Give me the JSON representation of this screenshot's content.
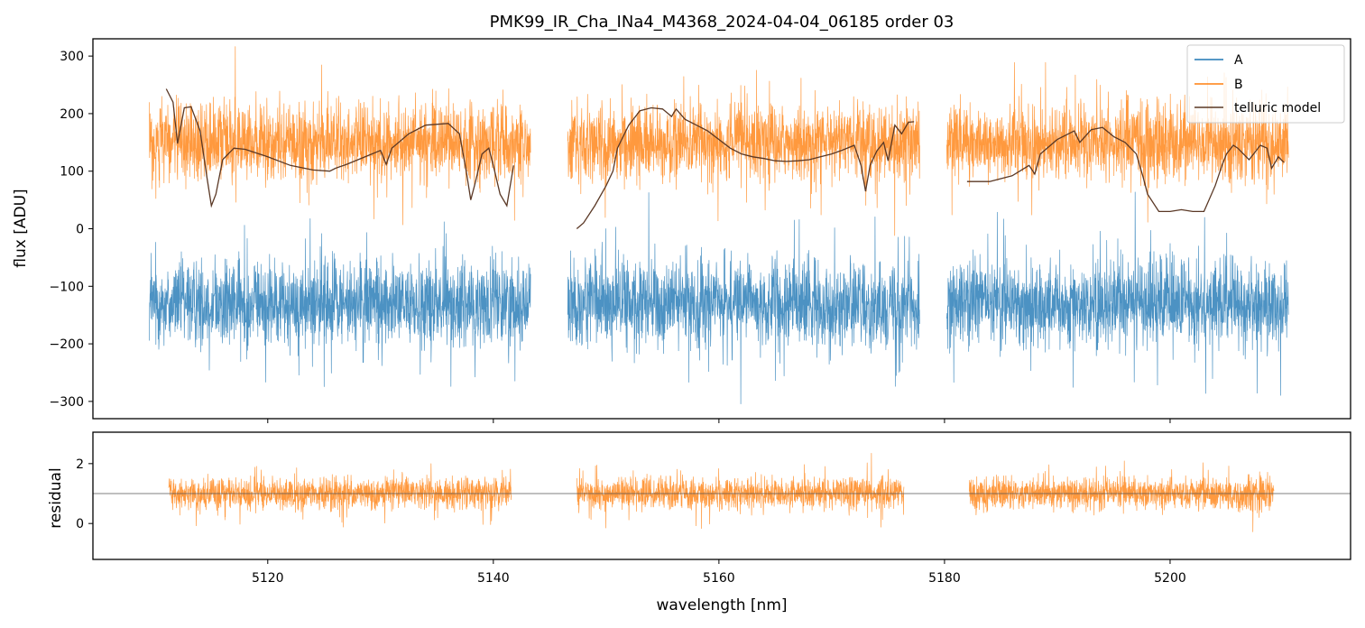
{
  "chart_data": [
    {
      "panel": "top",
      "type": "line",
      "title": "PMK99_IR_Cha_INa4_M4368_2024-04-04_06185  order 03",
      "xlabel": "",
      "ylabel": "flux [ADU]",
      "xlim": [
        5104.5,
        5216.0
      ],
      "ylim": [
        -330,
        330
      ],
      "yticks": [
        300,
        200,
        100,
        0,
        -100,
        -200,
        -300
      ],
      "ytick_labels": [
        "300",
        "200",
        "100",
        "0",
        "−100",
        "−200",
        "−300"
      ],
      "xticks": [
        5120,
        5140,
        5160,
        5180,
        5200
      ],
      "legend": {
        "position": "top-right",
        "entries": [
          "A",
          "B",
          "telluric model"
        ]
      },
      "segments": [
        {
          "x": [
            5109.5,
            5143.3
          ]
        },
        {
          "x": [
            5146.6,
            5177.8
          ]
        },
        {
          "x": [
            5180.2,
            5210.5
          ]
        }
      ],
      "series": [
        {
          "name": "A",
          "color": "#1f77b4",
          "band_center": -130,
          "band_halfwidth": 105
        },
        {
          "name": "B",
          "color": "#ff7f0e",
          "band_center": 150,
          "band_halfwidth": 95
        },
        {
          "name": "telluric model",
          "color": "#5a3825",
          "segments": [
            {
              "x": [
                5111.0,
                5111.6,
                5112.0,
                5112.6,
                5113.2,
                5114.0,
                5114.6,
                5115.0,
                5115.4,
                5116.0,
                5117.0,
                5118.0,
                5120.0,
                5122.0,
                5124.0,
                5125.5,
                5126.0,
                5127.0,
                5129.0,
                5130.0,
                5130.5,
                5131.0,
                5132.5,
                5134.0,
                5136.0,
                5137.0,
                5137.6,
                5138.0,
                5138.4,
                5139.0,
                5139.6,
                5140.0,
                5140.6,
                5141.2,
                5141.8
              ],
              "y": [
                243,
                220,
                148,
                210,
                212,
                170,
                90,
                40,
                60,
                120,
                140,
                138,
                125,
                110,
                102,
                100,
                105,
                112,
                128,
                136,
                112,
                140,
                165,
                180,
                183,
                165,
                100,
                50,
                80,
                130,
                140,
                110,
                60,
                40,
                110
              ]
            },
            {
              "x": [
                5147.4,
                5148.0,
                5149.0,
                5150.0,
                5150.6,
                5151.0,
                5152.0,
                5153.0,
                5154.0,
                5155.0,
                5155.8,
                5156.2,
                5157.0,
                5158.0,
                5159.0,
                5160.0,
                5161.0,
                5162.0,
                5163.0,
                5164.0,
                5165.0,
                5166.0,
                5167.0,
                5168.0,
                5169.0,
                5170.0,
                5171.0,
                5172.0,
                5172.6,
                5173.0,
                5173.4,
                5174.0,
                5174.6,
                5175.0,
                5175.6,
                5176.2,
                5176.8,
                5177.3
              ],
              "y": [
                0,
                10,
                40,
                75,
                100,
                140,
                180,
                205,
                210,
                208,
                195,
                208,
                190,
                180,
                170,
                155,
                140,
                130,
                125,
                122,
                118,
                117,
                118,
                120,
                125,
                130,
                137,
                145,
                110,
                65,
                110,
                135,
                150,
                118,
                180,
                165,
                185,
                186
              ]
            },
            {
              "x": [
                5182.0,
                5184.0,
                5186.0,
                5187.5,
                5188.0,
                5188.5,
                5190.0,
                5191.5,
                5192.0,
                5193.0,
                5194.0,
                5195.0,
                5196.0,
                5197.0,
                5197.6,
                5198.0,
                5199.0,
                5200.0,
                5201.0,
                5202.0,
                5203.0,
                5204.0,
                5204.6,
                5205.0,
                5205.6,
                5206.0,
                5207.0,
                5208.0,
                5208.6,
                5209.0,
                5209.6,
                5210.1
              ],
              "y": [
                82,
                82,
                92,
                110,
                95,
                130,
                155,
                170,
                150,
                172,
                176,
                160,
                150,
                130,
                90,
                60,
                30,
                30,
                33,
                30,
                30,
                75,
                110,
                130,
                145,
                140,
                120,
                145,
                140,
                105,
                125,
                115
              ]
            }
          ]
        }
      ]
    },
    {
      "panel": "bottom",
      "type": "line",
      "title": "",
      "xlabel": "wavelength [nm]",
      "ylabel": "residual",
      "xlim": [
        5104.5,
        5216.0
      ],
      "ylim": [
        -1.2,
        3.05
      ],
      "yticks": [
        2,
        0
      ],
      "ytick_labels": [
        "2",
        "0"
      ],
      "xticks": [
        5120,
        5140,
        5160,
        5180,
        5200
      ],
      "xtick_labels": [
        "5120",
        "5140",
        "5160",
        "5180",
        "5200"
      ],
      "reference_line": 1,
      "segments": [
        {
          "x": [
            5111.2,
            5141.6
          ]
        },
        {
          "x": [
            5147.4,
            5176.4
          ]
        },
        {
          "x": [
            5182.2,
            5209.2
          ]
        }
      ],
      "series": [
        {
          "name": "B residual",
          "color": "#ff7f0e",
          "band_center": 1.0,
          "band_halfwidth": 0.75
        }
      ]
    }
  ]
}
